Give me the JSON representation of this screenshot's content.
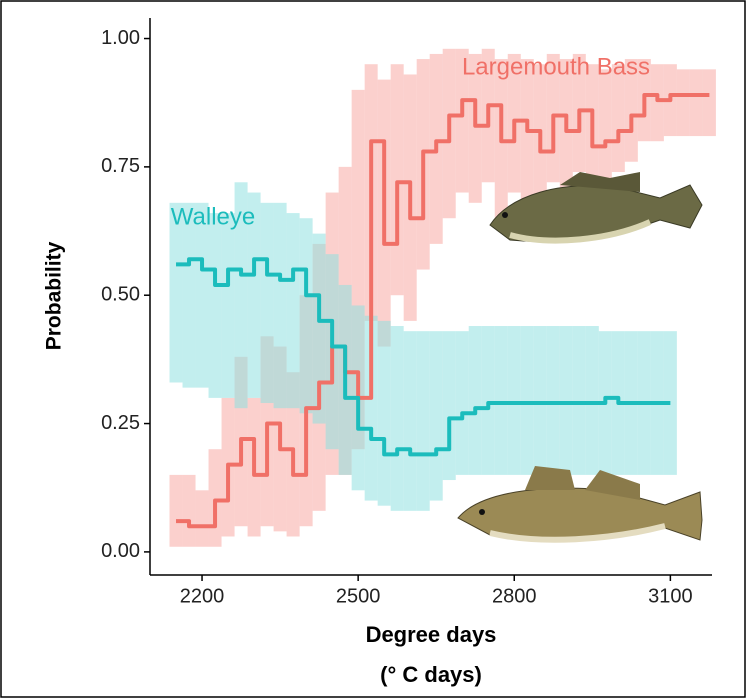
{
  "chart_data": {
    "type": "line",
    "ylabel": "Probability",
    "xlabel": "Degree days",
    "xlabel_unit": "(° C days)",
    "x": [
      2150,
      2175,
      2200,
      2225,
      2250,
      2275,
      2300,
      2325,
      2350,
      2375,
      2400,
      2425,
      2450,
      2475,
      2500,
      2525,
      2550,
      2575,
      2600,
      2625,
      2650,
      2675,
      2700,
      2725,
      2750,
      2775,
      2800,
      2825,
      2850,
      2875,
      2900,
      2925,
      2950,
      2975,
      3000,
      3025,
      3050,
      3075,
      3100,
      3125,
      3150,
      3175
    ],
    "xlim": [
      2100,
      3180
    ],
    "xticks": [
      2200,
      2500,
      2800,
      3100
    ],
    "ylim": [
      -0.045,
      1.04
    ],
    "yticks": [
      {
        "value": 0,
        "label": "0.00"
      },
      {
        "value": 0.25,
        "label": "0.25"
      },
      {
        "value": 0.5,
        "label": "0.50"
      },
      {
        "value": 0.75,
        "label": "0.75"
      },
      {
        "value": 1,
        "label": "1.00"
      }
    ],
    "series": [
      {
        "name": "Largemouth Bass",
        "color": "#f07067",
        "band_color": "#f8aaa4",
        "values": [
          0.06,
          0.05,
          0.05,
          0.1,
          0.17,
          0.22,
          0.15,
          0.25,
          0.2,
          0.15,
          0.28,
          0.33,
          0.4,
          0.35,
          0.3,
          0.8,
          0.6,
          0.72,
          0.65,
          0.78,
          0.8,
          0.85,
          0.88,
          0.83,
          0.87,
          0.8,
          0.84,
          0.82,
          0.78,
          0.85,
          0.82,
          0.86,
          0.79,
          0.8,
          0.82,
          0.85,
          0.89,
          0.88,
          0.89,
          0.89,
          0.89,
          0.89
        ],
        "lower": [
          0.01,
          0.01,
          0.01,
          0.01,
          0.03,
          0.05,
          0.03,
          0.05,
          0.04,
          0.03,
          0.05,
          0.08,
          0.15,
          0.15,
          0.2,
          0.45,
          0.4,
          0.5,
          0.45,
          0.55,
          0.6,
          0.65,
          0.7,
          0.68,
          0.72,
          0.65,
          0.7,
          0.68,
          0.65,
          0.72,
          0.7,
          0.74,
          0.7,
          0.72,
          0.74,
          0.76,
          0.8,
          0.8,
          0.81,
          0.81,
          0.81,
          0.81
        ],
        "upper": [
          0.15,
          0.15,
          0.12,
          0.2,
          0.3,
          0.38,
          0.3,
          0.42,
          0.4,
          0.35,
          0.5,
          0.6,
          0.7,
          0.75,
          0.9,
          0.95,
          0.92,
          0.95,
          0.93,
          0.96,
          0.97,
          0.98,
          0.98,
          0.97,
          0.98,
          0.96,
          0.97,
          0.96,
          0.95,
          0.97,
          0.96,
          0.97,
          0.95,
          0.94,
          0.95,
          0.96,
          0.96,
          0.95,
          0.95,
          0.94,
          0.94,
          0.94
        ]
      },
      {
        "name": "Walleye",
        "color": "#1bbcbc",
        "band_color": "#8fe0e0",
        "values": [
          0.56,
          0.57,
          0.55,
          0.52,
          0.55,
          0.54,
          0.57,
          0.54,
          0.53,
          0.55,
          0.5,
          0.45,
          0.4,
          0.3,
          0.24,
          0.22,
          0.19,
          0.2,
          0.19,
          0.19,
          0.2,
          0.26,
          0.27,
          0.28,
          0.29,
          0.29,
          0.29,
          0.29,
          0.29,
          0.29,
          0.29,
          0.29,
          0.29,
          0.3,
          0.29,
          0.29,
          0.29,
          0.29,
          0.29,
          null,
          null,
          null
        ],
        "lower": [
          0.33,
          0.32,
          0.32,
          0.3,
          0.3,
          0.28,
          0.3,
          0.29,
          0.28,
          0.28,
          0.27,
          0.25,
          0.2,
          0.15,
          0.12,
          0.1,
          0.09,
          0.08,
          0.08,
          0.08,
          0.1,
          0.14,
          0.15,
          0.15,
          0.15,
          0.15,
          0.15,
          0.15,
          0.15,
          0.15,
          0.15,
          0.15,
          0.15,
          0.15,
          0.15,
          0.15,
          0.15,
          0.15,
          0.15,
          null,
          null,
          null
        ],
        "upper": [
          0.68,
          0.68,
          0.68,
          0.66,
          0.66,
          0.72,
          0.7,
          0.68,
          0.68,
          0.66,
          0.65,
          0.62,
          0.58,
          0.52,
          0.48,
          0.46,
          0.45,
          0.44,
          0.43,
          0.43,
          0.43,
          0.43,
          0.43,
          0.44,
          0.44,
          0.44,
          0.44,
          0.44,
          0.44,
          0.44,
          0.44,
          0.44,
          0.44,
          0.43,
          0.43,
          0.43,
          0.43,
          0.43,
          0.43,
          null,
          null,
          null
        ]
      }
    ]
  }
}
